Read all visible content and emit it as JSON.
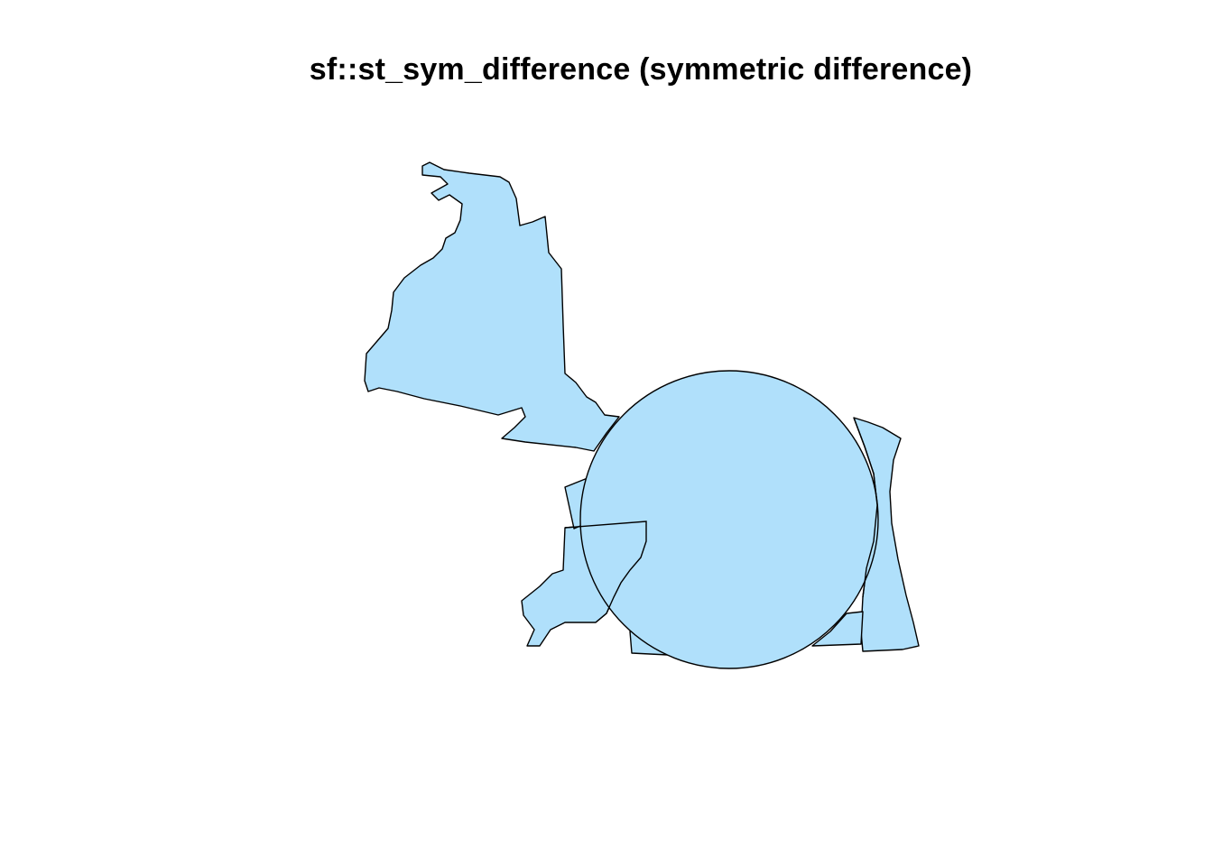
{
  "plot": {
    "title": "sf::st_sym_difference (symmetric difference)",
    "fill_color": "#b0e0fb",
    "stroke_color": "#000000",
    "background": "#ffffff"
  }
}
